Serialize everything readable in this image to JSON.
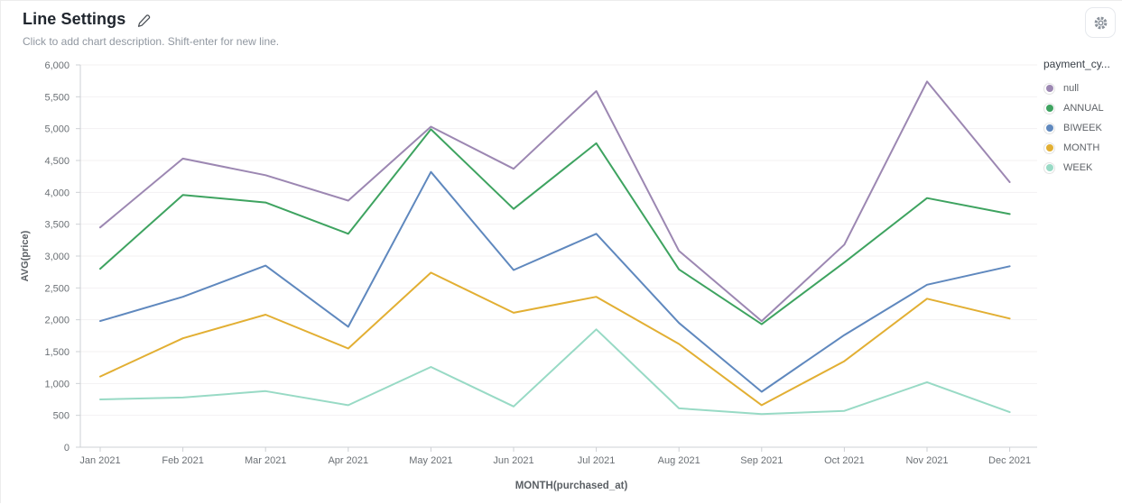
{
  "header": {
    "title": "Line Settings",
    "description_placeholder": "Click to add chart description. Shift-enter for new line."
  },
  "icons": {
    "edit": "pencil-icon",
    "settings": "gear-icon"
  },
  "legend": {
    "title": "payment_cy...",
    "items": [
      {
        "label": "null",
        "color": "#9C87B2"
      },
      {
        "label": "ANNUAL",
        "color": "#3EA360"
      },
      {
        "label": "BIWEEK",
        "color": "#5F88BE"
      },
      {
        "label": "MONTH",
        "color": "#E2AF33"
      },
      {
        "label": "WEEK",
        "color": "#98DAC5"
      }
    ]
  },
  "chart_data": {
    "type": "line",
    "title": "Line Settings",
    "categories": [
      "Jan 2021",
      "Feb 2021",
      "Mar 2021",
      "Apr 2021",
      "May 2021",
      "Jun 2021",
      "Jul 2021",
      "Aug 2021",
      "Sep 2021",
      "Oct 2021",
      "Nov 2021",
      "Dec 2021"
    ],
    "series": [
      {
        "name": "null",
        "color": "#9C87B2",
        "values": [
          3450,
          4530,
          4270,
          3870,
          5030,
          4370,
          5590,
          3080,
          1980,
          3180,
          5740,
          4160
        ]
      },
      {
        "name": "ANNUAL",
        "color": "#3EA360",
        "values": [
          2800,
          3960,
          3840,
          3350,
          4990,
          3740,
          4770,
          2790,
          1930,
          2900,
          3910,
          3660
        ]
      },
      {
        "name": "BIWEEK",
        "color": "#5F88BE",
        "values": [
          1980,
          2360,
          2850,
          1890,
          4320,
          2780,
          3350,
          1950,
          870,
          1760,
          2550,
          2840
        ]
      },
      {
        "name": "MONTH",
        "color": "#E2AF33",
        "values": [
          1110,
          1710,
          2080,
          1550,
          2740,
          2110,
          2360,
          1620,
          660,
          1350,
          2330,
          2020
        ]
      },
      {
        "name": "WEEK",
        "color": "#98DAC5",
        "values": [
          750,
          780,
          880,
          660,
          1260,
          640,
          1850,
          610,
          520,
          570,
          1020,
          550
        ]
      }
    ],
    "xlabel": "MONTH(purchased_at)",
    "ylabel": "AVG(price)",
    "ylim": [
      0,
      6000
    ],
    "ytick_step": 500,
    "grid": true,
    "legend_title": "payment_cy...",
    "legend_position": "right"
  },
  "style": {
    "grid_color": "#f3f1f2",
    "axis_line_color": "#cdd0d4",
    "tick_label_color": "#6b7075",
    "axis_title_color": "#5b6065"
  }
}
